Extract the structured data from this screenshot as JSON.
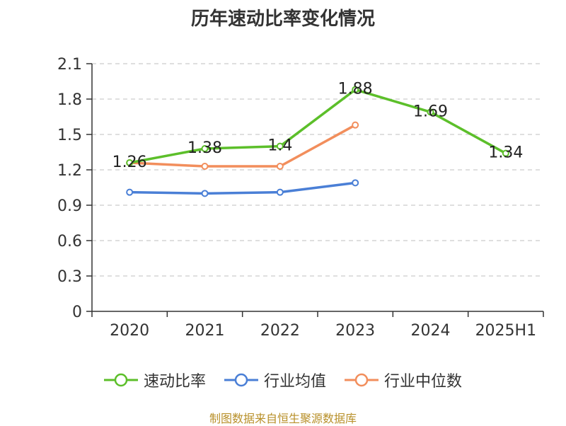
{
  "title": "历年速动比率变化情况",
  "source": "制图数据来自恒生聚源数据库",
  "chart_data": {
    "type": "line",
    "title": "历年速动比率变化情况",
    "categories": [
      "2020",
      "2021",
      "2022",
      "2023",
      "2024",
      "2025H1"
    ],
    "ylim": [
      0,
      2.1
    ],
    "yticks": [
      "0",
      "0.3",
      "0.6",
      "0.9",
      "1.2",
      "1.5",
      "1.8",
      "2.1"
    ],
    "grid": true,
    "legend_position": "bottom",
    "series": [
      {
        "name": "速动比率",
        "color": "#5cbf2a",
        "values": [
          1.26,
          1.38,
          1.4,
          1.88,
          1.69,
          1.34
        ],
        "labels": [
          "1.26",
          "1.38",
          "1.4",
          "1.88",
          "1.69",
          "1.34"
        ]
      },
      {
        "name": "行业均值",
        "color": "#4a7fd6",
        "values": [
          1.01,
          1.0,
          1.01,
          1.09,
          null,
          null
        ]
      },
      {
        "name": "行业中位数",
        "color": "#f28e5c",
        "values": [
          1.26,
          1.23,
          1.23,
          1.58,
          null,
          null
        ]
      }
    ]
  }
}
